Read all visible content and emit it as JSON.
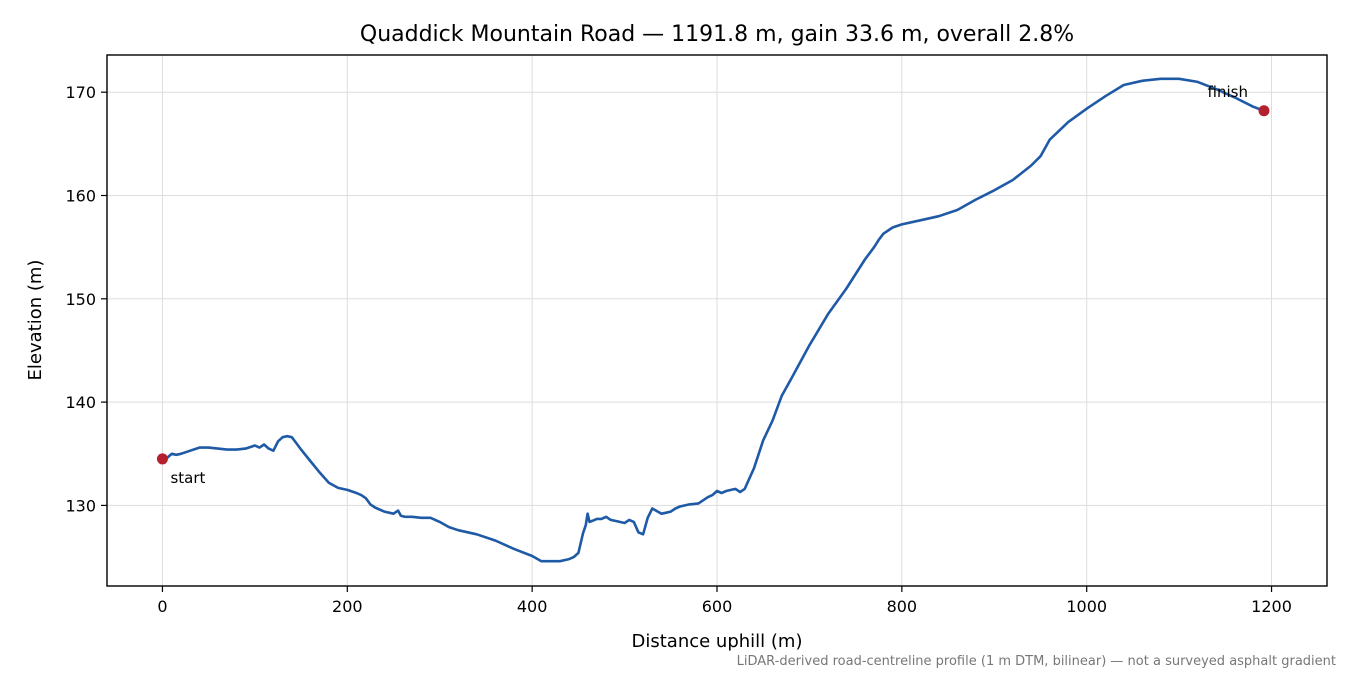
{
  "chart_data": {
    "type": "line",
    "title": "Quaddick Mountain Road — 1191.8 m, gain 33.6 m, overall 2.8%",
    "xlabel": "Distance uphill (m)",
    "ylabel": "Elevation (m)",
    "xlim": [
      -60,
      1260
    ],
    "ylim": [
      122.2,
      173.6
    ],
    "xticks": [
      0,
      200,
      400,
      600,
      800,
      1000,
      1200
    ],
    "yticks": [
      130,
      140,
      150,
      160,
      170
    ],
    "grid": true,
    "line_color": "#1f5aa6",
    "marker_color": "#b5202e",
    "series": [
      {
        "x": [
          0,
          5,
          10,
          15,
          20,
          30,
          40,
          50,
          60,
          70,
          80,
          90,
          100,
          105,
          110,
          115,
          120,
          125,
          130,
          135,
          140,
          145,
          150,
          160,
          170,
          180,
          190,
          200,
          210,
          215,
          220,
          225,
          230,
          240,
          250,
          255,
          258,
          262,
          270,
          280,
          290,
          300,
          310,
          320,
          340,
          360,
          380,
          400,
          410,
          420,
          430,
          440,
          445,
          450,
          455,
          458,
          460,
          462,
          465,
          470,
          475,
          480,
          485,
          490,
          500,
          505,
          510,
          515,
          520,
          525,
          530,
          540,
          545,
          550,
          555,
          560,
          570,
          580,
          590,
          595,
          600,
          605,
          610,
          615,
          620,
          625,
          630,
          640,
          650,
          660,
          670,
          680,
          700,
          720,
          740,
          760,
          770,
          775,
          780,
          790,
          800,
          820,
          840,
          860,
          880,
          900,
          920,
          940,
          950,
          960,
          980,
          1000,
          1020,
          1040,
          1060,
          1080,
          1090,
          1100,
          1120,
          1140,
          1160,
          1180,
          1191.8
        ],
        "y": [
          134.5,
          134.6,
          135.0,
          134.9,
          135.0,
          135.3,
          135.6,
          135.6,
          135.5,
          135.4,
          135.4,
          135.5,
          135.8,
          135.6,
          135.9,
          135.5,
          135.3,
          136.2,
          136.6,
          136.7,
          136.6,
          136.0,
          135.4,
          134.3,
          133.2,
          132.2,
          131.7,
          131.5,
          131.2,
          131.0,
          130.7,
          130.1,
          129.8,
          129.4,
          129.2,
          129.5,
          129.0,
          128.9,
          128.9,
          128.8,
          128.8,
          128.4,
          127.9,
          127.6,
          127.2,
          126.6,
          125.8,
          125.1,
          124.6,
          124.6,
          124.6,
          124.8,
          125.0,
          125.4,
          127.3,
          128.1,
          129.2,
          128.4,
          128.5,
          128.7,
          128.7,
          128.9,
          128.6,
          128.5,
          128.3,
          128.6,
          128.4,
          127.4,
          127.2,
          128.8,
          129.7,
          129.2,
          129.3,
          129.4,
          129.7,
          129.9,
          130.1,
          130.2,
          130.8,
          131.0,
          131.4,
          131.2,
          131.4,
          131.5,
          131.6,
          131.3,
          131.6,
          133.6,
          136.3,
          138.2,
          140.6,
          142.2,
          145.5,
          148.5,
          151.0,
          153.8,
          155.0,
          155.7,
          156.3,
          156.9,
          157.2,
          157.6,
          158.0,
          158.6,
          159.6,
          160.5,
          161.5,
          162.9,
          163.8,
          165.4,
          167.1,
          168.4,
          169.6,
          170.7,
          171.1,
          171.3,
          171.3,
          171.3,
          171.0,
          170.3,
          169.5,
          168.6,
          168.2
        ]
      }
    ],
    "annotations": [
      {
        "text": "start",
        "x": 0,
        "y": 134.5,
        "anchor": "below-right"
      },
      {
        "text": "finish",
        "x": 1191.8,
        "y": 168.2,
        "anchor": "above-left"
      }
    ],
    "footnote": "LiDAR-derived road-centreline profile (1 m DTM, bilinear) — not a surveyed asphalt gradient"
  }
}
